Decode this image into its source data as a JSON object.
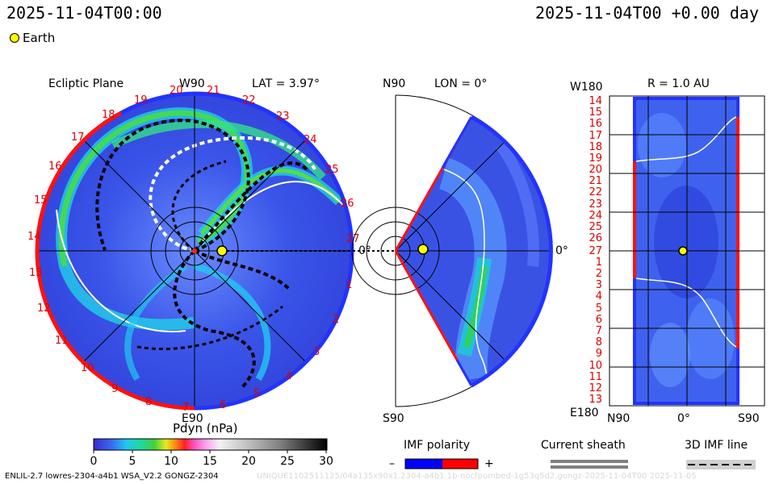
{
  "header": {
    "datetime_left": "2025-11-04T00:00",
    "datetime_right": "2025-11-04T00 +0.00 day"
  },
  "legend": {
    "earth_label": "Earth"
  },
  "ecliptic": {
    "title": "Ecliptic Plane",
    "top_label": "W90",
    "bottom_label": "E90",
    "lat_label": "LAT = 3.97°",
    "right_label": "0°",
    "rim_numbers": [
      "18",
      "19",
      "20",
      "21",
      "22",
      "23",
      "24",
      "25",
      "26",
      "27",
      "1",
      "2",
      "3",
      "4",
      "5",
      "6",
      "7",
      "8",
      "9",
      "10",
      "11",
      "12",
      "13",
      "14",
      "15",
      "16",
      "17"
    ]
  },
  "meridional": {
    "top_label": "N90",
    "bottom_label": "S90",
    "lon_label": "LON = 0°",
    "right_label": "0°"
  },
  "carrington": {
    "top_label": "W180",
    "bottom_label": "E180",
    "r_label": "R = 1.0 AU",
    "x_labels": [
      "N90",
      "0°",
      "S90"
    ],
    "y_labels": [
      "14",
      "15",
      "16",
      "17",
      "18",
      "19",
      "20",
      "21",
      "22",
      "23",
      "24",
      "25",
      "26",
      "27",
      "1",
      "2",
      "3",
      "4",
      "5",
      "6",
      "7",
      "8",
      "9",
      "10",
      "11",
      "12",
      "13"
    ]
  },
  "colorbar": {
    "title": "Pdyn (nPa)",
    "ticks": [
      "0",
      "5",
      "10",
      "15",
      "20",
      "25",
      "30"
    ]
  },
  "imf": {
    "title": "IMF polarity",
    "minus": "–",
    "plus": "+",
    "negative_color": "#0000ff",
    "positive_color": "#ff0000"
  },
  "sheath": {
    "title": "Current sheath"
  },
  "imfline": {
    "title": "3D IMF line"
  },
  "footer": {
    "left": "ENLIL-2.7 lowres-2304-a4b1 WSA_V2.2 GONGZ-2304",
    "right": "UNIQUE1102511125/04a135x90x1.2304-a4b1.1b-nocfpumbed-1g53q5d2.gongz-2025-11-04T00 2025-11-05"
  }
}
